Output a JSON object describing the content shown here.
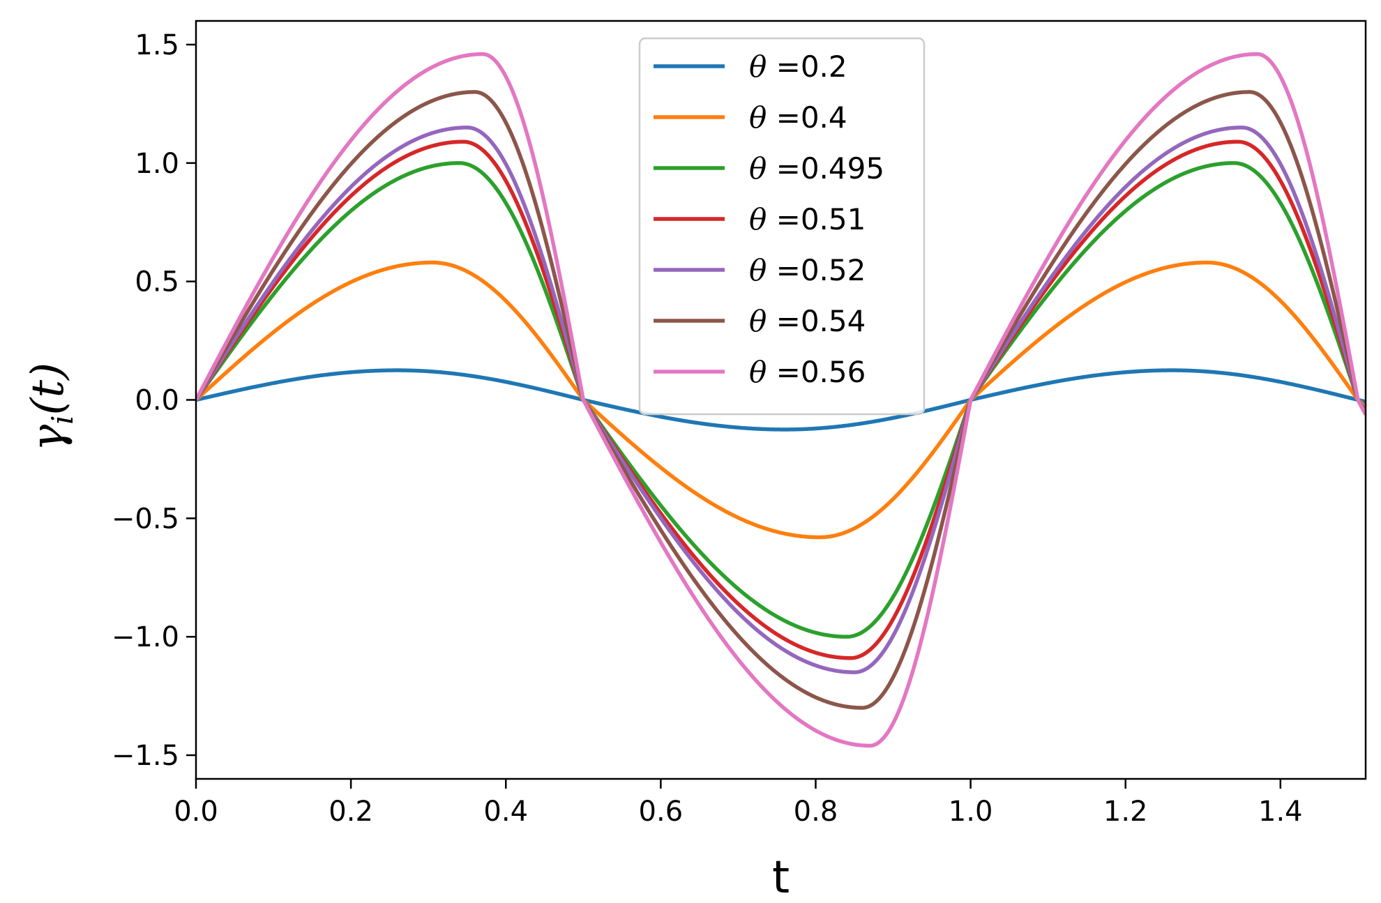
{
  "chart_data": {
    "type": "line",
    "title": "",
    "xlabel": "t",
    "ylabel_main": "γ",
    "ylabel_sub": "i",
    "ylabel_rest": "(t)",
    "xlim": [
      0.0,
      1.51
    ],
    "ylim": [
      -1.6,
      1.6
    ],
    "xticks": [
      0.0,
      0.2,
      0.4,
      0.6,
      0.8,
      1.0,
      1.2,
      1.4
    ],
    "xtick_labels": [
      "0.0",
      "0.2",
      "0.4",
      "0.6",
      "0.8",
      "1.0",
      "1.2",
      "1.4"
    ],
    "yticks": [
      -1.5,
      -1.0,
      -0.5,
      0.0,
      0.5,
      1.0,
      1.5
    ],
    "ytick_labels": [
      "−1.5",
      "−1.0",
      "−0.5",
      "0.0",
      "0.5",
      "1.0",
      "1.5"
    ],
    "grid": false,
    "legend_position": "top-center",
    "series": [
      {
        "name": "θ =0.2",
        "theta_symbol": "θ",
        "label_value": " =0.2",
        "theta": 0.2,
        "color": "#1f77b4",
        "peak_t": 0.26,
        "peak_value": 0.125
      },
      {
        "name": "θ =0.4",
        "theta_symbol": "θ",
        "label_value": " =0.4",
        "theta": 0.4,
        "color": "#ff7f0e",
        "peak_t": 0.305,
        "peak_value": 0.58
      },
      {
        "name": "θ =0.495",
        "theta_symbol": "θ",
        "label_value": " =0.495",
        "theta": 0.495,
        "color": "#2ca02c",
        "peak_t": 0.34,
        "peak_value": 1.0
      },
      {
        "name": "θ =0.51",
        "theta_symbol": "θ",
        "label_value": " =0.51",
        "theta": 0.51,
        "color": "#d62728",
        "peak_t": 0.345,
        "peak_value": 1.09
      },
      {
        "name": "θ =0.52",
        "theta_symbol": "θ",
        "label_value": " =0.52",
        "theta": 0.52,
        "color": "#9467bd",
        "peak_t": 0.35,
        "peak_value": 1.15
      },
      {
        "name": "θ =0.54",
        "theta_symbol": "θ",
        "label_value": " =0.54",
        "theta": 0.54,
        "color": "#8c564b",
        "peak_t": 0.36,
        "peak_value": 1.3
      },
      {
        "name": "θ =0.56",
        "theta_symbol": "θ",
        "label_value": " =0.56",
        "theta": 0.56,
        "color": "#e377c2",
        "peak_t": 0.37,
        "peak_value": 1.46
      }
    ]
  }
}
